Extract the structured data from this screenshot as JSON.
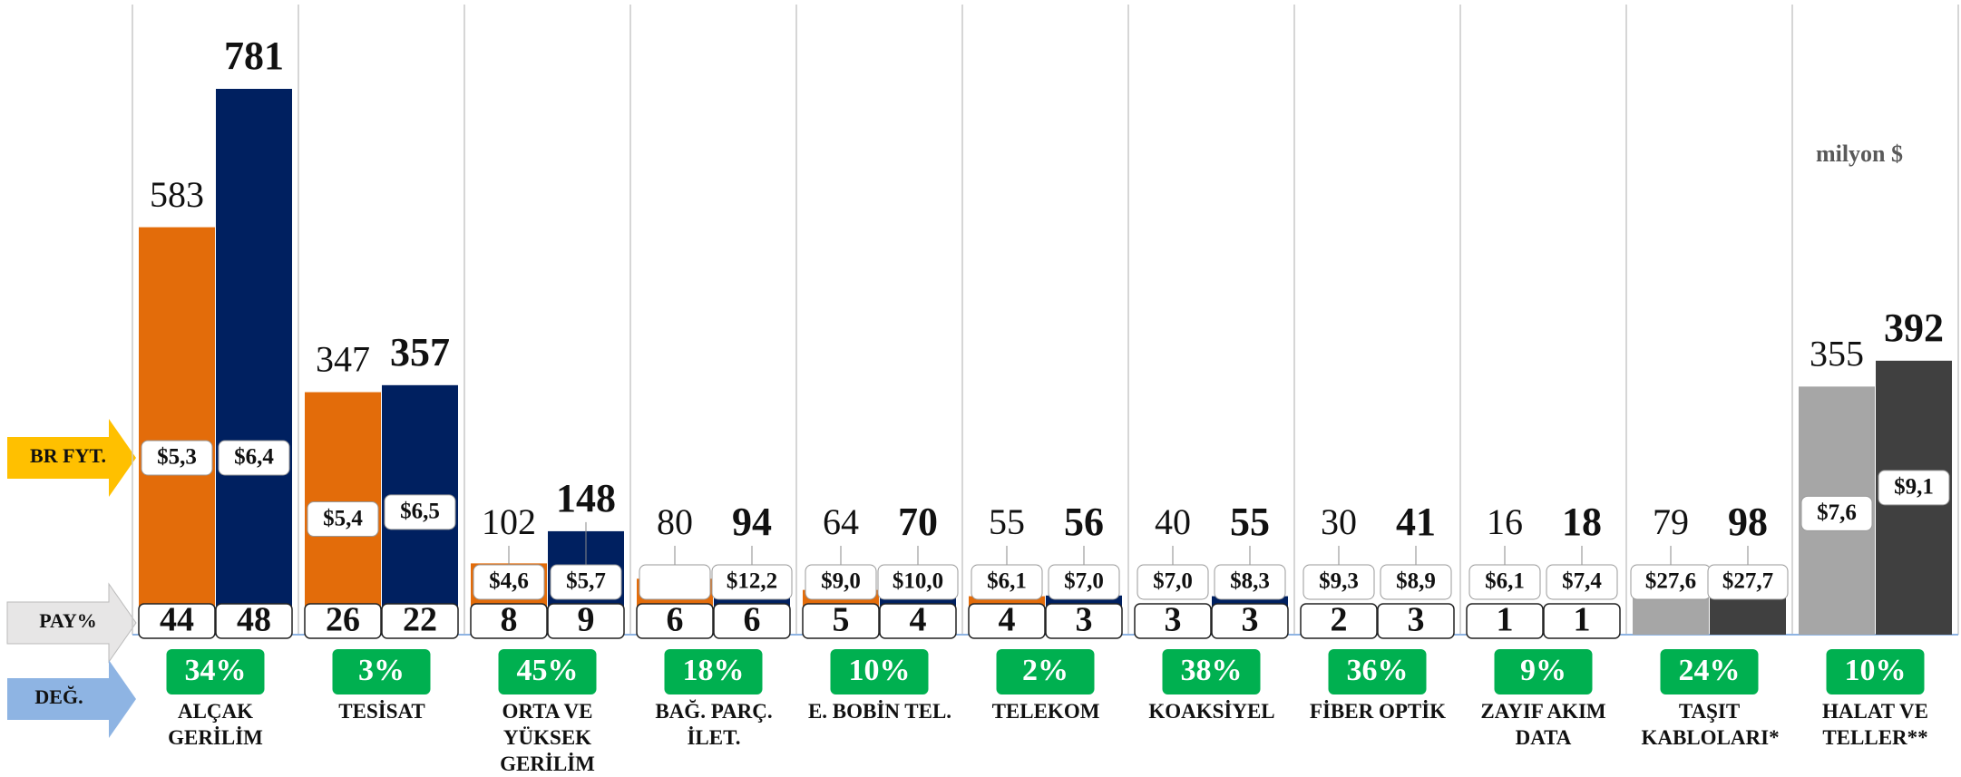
{
  "chart_data": {
    "type": "bar",
    "unit_note": "milyon $",
    "row_labels": {
      "price": "BR FYT.",
      "share": "PAY%",
      "change": "DEĞ."
    },
    "categories": [
      "ALÇAK GERİLİM",
      "TESİSAT",
      "ORTA VE YÜKSEK GERİLİM",
      "BAĞ. PARÇ. İLET.",
      "E. BOBİN TEL.",
      "TELEKOM",
      "KOAKSİYEL",
      "FİBER OPTİK",
      "ZAYIF AKIM DATA",
      "TAŞIT KABLOLARI*",
      "HALAT VE TELLER**"
    ],
    "series": [
      {
        "colors": [
          "#e36c0a",
          "#e36c0a",
          "#e36c0a",
          "#e36c0a",
          "#e36c0a",
          "#e36c0a",
          "#e36c0a",
          "#e36c0a",
          "#e36c0a",
          "#a6a6a6",
          "#a6a6a6"
        ],
        "values": [
          583,
          347,
          102,
          80,
          64,
          55,
          40,
          30,
          16,
          79,
          355
        ],
        "price_labels": [
          "$5,3",
          "$5,4",
          "$4,6",
          null,
          "$9,0",
          "$6,1",
          "$7,0",
          "$9,3",
          "$6,1",
          "$27,6",
          "$7,6"
        ],
        "shares": [
          44,
          26,
          8,
          6,
          5,
          4,
          3,
          2,
          1,
          null,
          null
        ]
      },
      {
        "colors": [
          "#002060",
          "#002060",
          "#002060",
          "#002060",
          "#002060",
          "#002060",
          "#002060",
          "#002060",
          "#002060",
          "#404040",
          "#404040"
        ],
        "values": [
          781,
          357,
          148,
          94,
          70,
          56,
          55,
          41,
          18,
          98,
          392
        ],
        "price_labels": [
          "$6,4",
          "$6,5",
          "$5,7",
          "$12,2",
          "$10,0",
          "$7,0",
          "$8,3",
          "$8,9",
          "$7,4",
          "$27,7",
          "$9,1"
        ],
        "shares": [
          48,
          22,
          9,
          6,
          4,
          3,
          3,
          3,
          1,
          null,
          null
        ]
      }
    ],
    "change_labels": [
      "34%",
      "3%",
      "45%",
      "18%",
      "10%",
      "2%",
      "38%",
      "36%",
      "9%",
      "24%",
      "10%"
    ]
  }
}
